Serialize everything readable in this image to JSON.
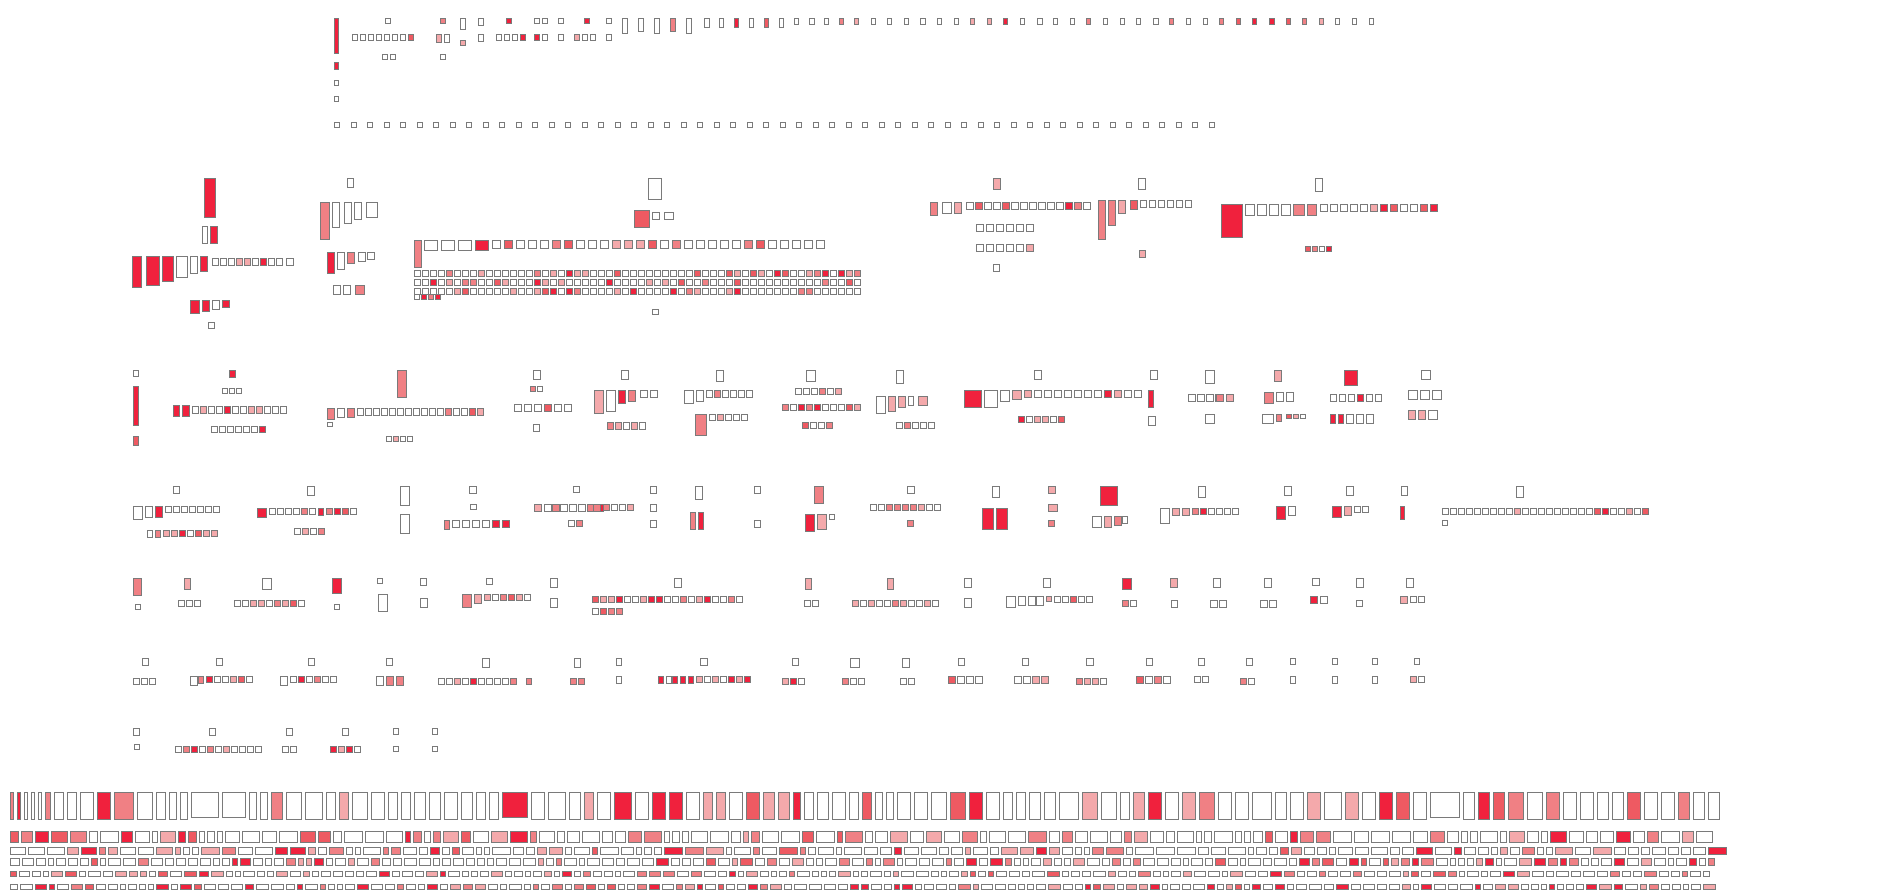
{
  "title": "",
  "palette": {
    "empty": "#ffffff",
    "light": "#f4a9ab",
    "medium": "#f08084",
    "strong": "#ee5a62",
    "full": "#f0213d",
    "border": "#7a7a7a"
  },
  "legend": [],
  "text": []
}
